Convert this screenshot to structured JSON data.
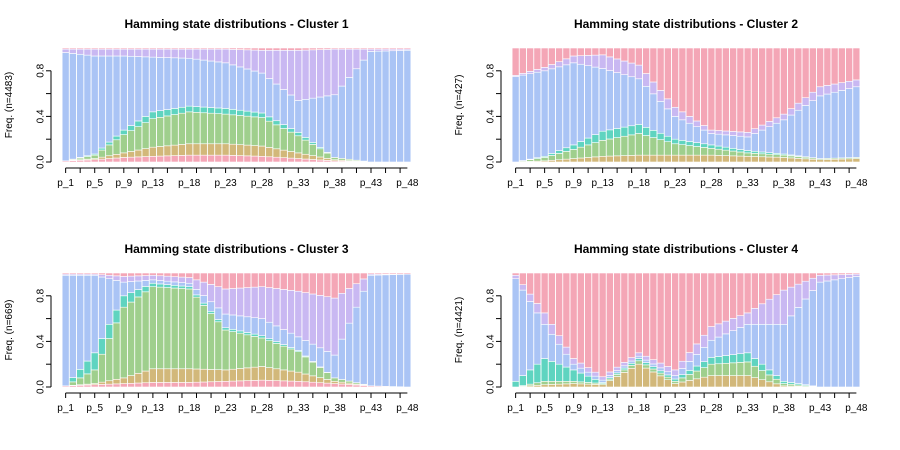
{
  "chart_data": [
    {
      "type": "area",
      "title": "Hamming state distributions - Cluster 1",
      "ylabel": "Freq. (n=4483)",
      "ylim": [
        0,
        1
      ],
      "y_ticks": [
        "0.0",
        "0.4",
        "0.8"
      ],
      "x_tick_labels": [
        "p_1",
        "p_5",
        "p_9",
        "p_13",
        "p_18",
        "p_23",
        "p_28",
        "p_33",
        "p_38",
        "p_43",
        "p_48"
      ],
      "x_tick_positions": [
        1,
        5,
        9,
        13,
        18,
        23,
        28,
        33,
        38,
        43,
        48
      ],
      "n_positions": 48,
      "anchor_x": [
        1,
        5,
        9,
        13,
        18,
        23,
        28,
        33,
        38,
        43,
        48
      ],
      "series": [
        {
          "color": "#f4a6b6",
          "values": [
            0.01,
            0.02,
            0.04,
            0.05,
            0.06,
            0.06,
            0.05,
            0.03,
            0.01,
            0.0,
            0.0
          ]
        },
        {
          "color": "#d2b87a",
          "values": [
            0.0,
            0.01,
            0.04,
            0.08,
            0.1,
            0.1,
            0.09,
            0.05,
            0.01,
            0.0,
            0.0
          ]
        },
        {
          "color": "#9fcf8d",
          "values": [
            0.0,
            0.03,
            0.16,
            0.25,
            0.28,
            0.26,
            0.25,
            0.15,
            0.02,
            0.0,
            0.0
          ]
        },
        {
          "color": "#5fd4c0",
          "values": [
            0.0,
            0.01,
            0.04,
            0.06,
            0.05,
            0.05,
            0.04,
            0.03,
            0.0,
            0.0,
            0.0
          ]
        },
        {
          "color": "#aac4f5",
          "values": [
            0.95,
            0.86,
            0.65,
            0.48,
            0.42,
            0.4,
            0.35,
            0.28,
            0.55,
            0.97,
            0.98
          ]
        },
        {
          "color": "#c9b8f2",
          "values": [
            0.03,
            0.06,
            0.06,
            0.07,
            0.08,
            0.12,
            0.2,
            0.44,
            0.4,
            0.02,
            0.01
          ]
        },
        {
          "color": "#f4a6b6",
          "values": [
            0.01,
            0.01,
            0.01,
            0.01,
            0.01,
            0.01,
            0.02,
            0.02,
            0.01,
            0.01,
            0.01
          ]
        }
      ]
    },
    {
      "type": "area",
      "title": "Hamming state distributions - Cluster 2",
      "ylabel": "Freq. (n=427)",
      "ylim": [
        0,
        1
      ],
      "y_ticks": [
        "0.0",
        "0.4",
        "0.8"
      ],
      "x_tick_labels": [
        "p_1",
        "p_5",
        "p_9",
        "p_13",
        "p_18",
        "p_23",
        "p_28",
        "p_33",
        "p_38",
        "p_43",
        "p_48"
      ],
      "x_tick_positions": [
        1,
        5,
        9,
        13,
        18,
        23,
        28,
        33,
        38,
        43,
        48
      ],
      "n_positions": 48,
      "anchor_x": [
        1,
        5,
        9,
        13,
        18,
        23,
        28,
        33,
        38,
        43,
        48
      ],
      "series": [
        {
          "color": "#d2b87a",
          "values": [
            0.0,
            0.01,
            0.03,
            0.05,
            0.06,
            0.06,
            0.06,
            0.05,
            0.04,
            0.02,
            0.03
          ]
        },
        {
          "color": "#9fcf8d",
          "values": [
            0.0,
            0.03,
            0.08,
            0.14,
            0.19,
            0.1,
            0.06,
            0.03,
            0.02,
            0.01,
            0.01
          ]
        },
        {
          "color": "#5fd4c0",
          "values": [
            0.0,
            0.01,
            0.04,
            0.08,
            0.08,
            0.04,
            0.03,
            0.02,
            0.01,
            0.0,
            0.0
          ]
        },
        {
          "color": "#aac4f5",
          "values": [
            0.75,
            0.75,
            0.72,
            0.55,
            0.4,
            0.2,
            0.1,
            0.12,
            0.3,
            0.55,
            0.62
          ]
        },
        {
          "color": "#c9b8f2",
          "values": [
            0.01,
            0.03,
            0.06,
            0.12,
            0.12,
            0.08,
            0.03,
            0.04,
            0.05,
            0.08,
            0.06
          ]
        },
        {
          "color": "#f4a6b6",
          "values": [
            0.24,
            0.17,
            0.07,
            0.06,
            0.15,
            0.52,
            0.72,
            0.74,
            0.58,
            0.34,
            0.28
          ]
        }
      ]
    },
    {
      "type": "area",
      "title": "Hamming state distributions - Cluster 3",
      "ylabel": "Freq. (n=669)",
      "ylim": [
        0,
        1
      ],
      "y_ticks": [
        "0.0",
        "0.4",
        "0.8"
      ],
      "x_tick_labels": [
        "p_1",
        "p_5",
        "p_9",
        "p_13",
        "p_18",
        "p_23",
        "p_28",
        "p_33",
        "p_38",
        "p_43",
        "p_48"
      ],
      "x_tick_positions": [
        1,
        5,
        9,
        13,
        18,
        23,
        28,
        33,
        38,
        43,
        48
      ],
      "n_positions": 48,
      "anchor_x": [
        1,
        5,
        9,
        13,
        18,
        23,
        28,
        33,
        38,
        43,
        48
      ],
      "series": [
        {
          "color": "#f4a6b6",
          "values": [
            0.01,
            0.02,
            0.03,
            0.04,
            0.04,
            0.05,
            0.06,
            0.05,
            0.03,
            0.01,
            0.0
          ]
        },
        {
          "color": "#d2b87a",
          "values": [
            0.0,
            0.01,
            0.05,
            0.12,
            0.12,
            0.1,
            0.12,
            0.08,
            0.02,
            0.0,
            0.0
          ]
        },
        {
          "color": "#9fcf8d",
          "values": [
            0.0,
            0.12,
            0.62,
            0.72,
            0.7,
            0.35,
            0.25,
            0.18,
            0.03,
            0.0,
            0.0
          ]
        },
        {
          "color": "#5fd4c0",
          "values": [
            0.0,
            0.15,
            0.1,
            0.03,
            0.02,
            0.02,
            0.02,
            0.01,
            0.0,
            0.0,
            0.0
          ]
        },
        {
          "color": "#aac4f5",
          "values": [
            0.97,
            0.68,
            0.12,
            0.03,
            0.03,
            0.12,
            0.15,
            0.12,
            0.2,
            0.97,
            0.99
          ]
        },
        {
          "color": "#c9b8f2",
          "values": [
            0.01,
            0.01,
            0.05,
            0.04,
            0.05,
            0.22,
            0.28,
            0.4,
            0.5,
            0.01,
            0.0
          ]
        },
        {
          "color": "#f4a6b6",
          "values": [
            0.01,
            0.01,
            0.03,
            0.02,
            0.04,
            0.14,
            0.12,
            0.16,
            0.22,
            0.01,
            0.01
          ]
        }
      ]
    },
    {
      "type": "area",
      "title": "Hamming state distributions - Cluster 4",
      "ylabel": "Freq. (n=4421)",
      "ylim": [
        0,
        1
      ],
      "y_ticks": [
        "0.0",
        "0.4",
        "0.8"
      ],
      "x_tick_labels": [
        "p_1",
        "p_5",
        "p_9",
        "p_13",
        "p_18",
        "p_23",
        "p_28",
        "p_33",
        "p_38",
        "p_43",
        "p_48"
      ],
      "x_tick_positions": [
        1,
        5,
        9,
        13,
        18,
        23,
        28,
        33,
        38,
        43,
        48
      ],
      "n_positions": 48,
      "anchor_x": [
        1,
        5,
        9,
        13,
        18,
        23,
        28,
        33,
        38,
        43,
        48
      ],
      "series": [
        {
          "color": "#d2b87a",
          "values": [
            0.0,
            0.02,
            0.03,
            0.02,
            0.2,
            0.03,
            0.1,
            0.1,
            0.01,
            0.0,
            0.0
          ]
        },
        {
          "color": "#9fcf8d",
          "values": [
            0.0,
            0.03,
            0.02,
            0.01,
            0.03,
            0.02,
            0.1,
            0.12,
            0.02,
            0.0,
            0.0
          ]
        },
        {
          "color": "#5fd4c0",
          "values": [
            0.05,
            0.2,
            0.1,
            0.01,
            0.02,
            0.02,
            0.06,
            0.08,
            0.02,
            0.0,
            0.0
          ]
        },
        {
          "color": "#aac4f5",
          "values": [
            0.9,
            0.3,
            0.05,
            0.02,
            0.02,
            0.03,
            0.15,
            0.25,
            0.5,
            0.92,
            0.97
          ]
        },
        {
          "color": "#c9b8f2",
          "values": [
            0.03,
            0.1,
            0.05,
            0.03,
            0.03,
            0.05,
            0.12,
            0.1,
            0.3,
            0.06,
            0.02
          ]
        },
        {
          "color": "#f4a6b6",
          "values": [
            0.02,
            0.35,
            0.75,
            0.91,
            0.7,
            0.85,
            0.47,
            0.35,
            0.15,
            0.02,
            0.01
          ]
        }
      ]
    }
  ]
}
